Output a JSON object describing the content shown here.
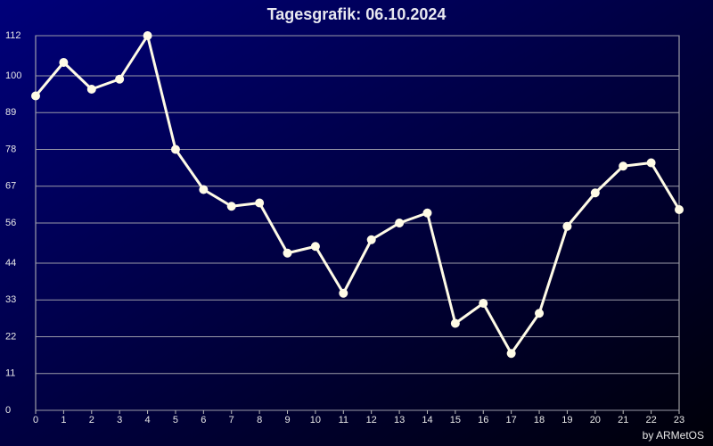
{
  "chart_data": {
    "type": "line",
    "title": "Tagesgrafik: 06.10.2024",
    "footer": "by ARMetOS",
    "x": [
      0,
      1,
      2,
      3,
      4,
      5,
      6,
      7,
      8,
      9,
      10,
      11,
      12,
      13,
      14,
      15,
      16,
      17,
      18,
      19,
      20,
      21,
      22,
      23
    ],
    "series": [
      {
        "color": "#fffbe6",
        "values": [
          94,
          104,
          96,
          99,
          112,
          78,
          66,
          61,
          62,
          47,
          49,
          35,
          51,
          56,
          59,
          26,
          32,
          17,
          29,
          55,
          65,
          73,
          74,
          60
        ]
      }
    ],
    "xlim": [
      0,
      23
    ],
    "xticks": [
      0,
      1,
      2,
      3,
      4,
      5,
      6,
      7,
      8,
      9,
      10,
      11,
      12,
      13,
      14,
      15,
      16,
      17,
      18,
      19,
      20,
      21,
      22,
      23
    ],
    "ylim": [
      0,
      112
    ],
    "yticks": [
      0,
      11,
      22,
      33,
      44,
      56,
      67,
      78,
      89,
      100,
      112
    ],
    "grid": true
  }
}
